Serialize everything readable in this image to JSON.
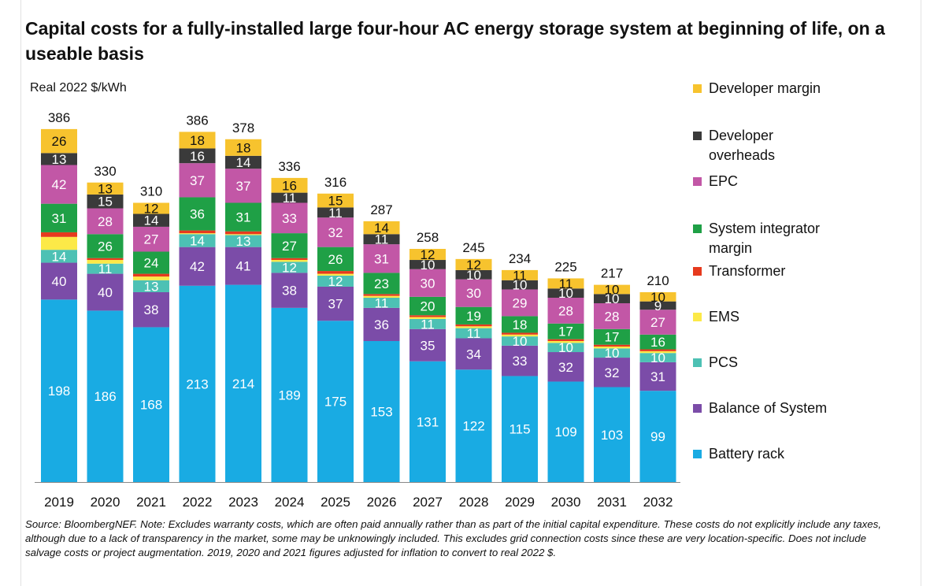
{
  "chart_data": {
    "type": "bar",
    "stacked": true,
    "title": "Capital costs for a fully-installed large four-hour AC energy storage system at beginning of life, on a useable basis",
    "ylabel": "Real 2022 $/kWh",
    "xlabel": "",
    "ylim": [
      0,
      410
    ],
    "grid": false,
    "legend_position": "right",
    "categories": [
      "2019",
      "2020",
      "2021",
      "2022",
      "2023",
      "2024",
      "2025",
      "2026",
      "2027",
      "2028",
      "2029",
      "2030",
      "2031",
      "2032"
    ],
    "totals": [
      386,
      330,
      310,
      386,
      378,
      336,
      316,
      287,
      258,
      245,
      234,
      225,
      217,
      210
    ],
    "series": [
      {
        "name": "Battery rack",
        "color": "#19ABE3",
        "values": [
          198,
          186,
          168,
          213,
          214,
          189,
          175,
          153,
          131,
          122,
          115,
          109,
          103,
          99
        ],
        "labels": [
          "198",
          "186",
          "168",
          "213",
          "214",
          "189",
          "175",
          "153",
          "131",
          "122",
          "115",
          "109",
          "103",
          "99"
        ]
      },
      {
        "name": "Balance of System",
        "color": "#7B4CA8",
        "values": [
          40,
          40,
          38,
          42,
          41,
          38,
          37,
          36,
          35,
          34,
          33,
          32,
          32,
          31
        ],
        "labels": [
          "40",
          "40",
          "38",
          "42",
          "41",
          "38",
          "37",
          "36",
          "35",
          "34",
          "33",
          "32",
          "32",
          "31"
        ]
      },
      {
        "name": "PCS",
        "color": "#4DC1B4",
        "values": [
          14,
          11,
          13,
          14,
          13,
          12,
          12,
          11,
          11,
          11,
          10,
          10,
          10,
          10
        ],
        "labels": [
          "14",
          "11",
          "13",
          "14",
          "13",
          "12",
          "12",
          "11",
          "11",
          "11",
          "10",
          "10",
          "10",
          "10"
        ]
      },
      {
        "name": "EMS",
        "color": "#FCE948",
        "values": [
          14,
          4,
          4,
          1,
          1,
          2,
          2,
          2,
          2,
          2,
          2,
          2,
          2,
          2
        ],
        "labels": [
          "",
          "",
          "",
          "",
          "",
          "",
          "",
          "",
          "",
          "",
          "",
          "",
          "",
          ""
        ]
      },
      {
        "name": "Transformer",
        "color": "#E63A1E",
        "values": [
          5,
          2,
          3,
          3,
          3,
          2,
          3,
          2,
          2,
          2,
          2,
          2,
          2,
          2
        ],
        "labels": [
          "",
          "",
          "",
          "",
          "",
          "",
          "",
          "",
          "",
          "",
          "",
          "",
          "",
          ""
        ]
      },
      {
        "name": "System integrator margin",
        "color": "#1FA046",
        "values": [
          31,
          26,
          24,
          36,
          31,
          27,
          26,
          23,
          20,
          19,
          18,
          17,
          17,
          16
        ],
        "labels": [
          "31",
          "26",
          "24",
          "36",
          "31",
          "27",
          "26",
          "23",
          "20",
          "19",
          "18",
          "17",
          "17",
          "16"
        ]
      },
      {
        "name": "EPC",
        "color": "#C257A6",
        "values": [
          42,
          28,
          27,
          37,
          37,
          33,
          32,
          31,
          30,
          30,
          29,
          28,
          28,
          27
        ],
        "labels": [
          "42",
          "28",
          "27",
          "37",
          "37",
          "33",
          "32",
          "31",
          "30",
          "30",
          "29",
          "28",
          "28",
          "27"
        ]
      },
      {
        "name": "Developer overheads",
        "color": "#3A3A3A",
        "values": [
          13,
          15,
          14,
          16,
          14,
          11,
          11,
          11,
          10,
          10,
          10,
          10,
          10,
          9
        ],
        "labels": [
          "13",
          "15",
          "14",
          "16",
          "14",
          "11",
          "11",
          "11",
          "10",
          "10",
          "10",
          "10",
          "10",
          "9"
        ]
      },
      {
        "name": "Developer margin",
        "color": "#F7C32E",
        "values": [
          26,
          13,
          12,
          18,
          18,
          16,
          15,
          14,
          12,
          12,
          11,
          11,
          10,
          10
        ],
        "labels": [
          "26",
          "13",
          "12",
          "18",
          "18",
          "16",
          "15",
          "14",
          "12",
          "12",
          "11",
          "11",
          "10",
          "10"
        ]
      }
    ],
    "legend": [
      {
        "label": "Developer margin",
        "color": "#F7C32E"
      },
      {
        "label": "Developer overheads",
        "color": "#3A3A3A"
      },
      {
        "label": "EPC",
        "color": "#C257A6"
      },
      {
        "label": "System integrator margin",
        "color": "#1FA046"
      },
      {
        "label": "Transformer",
        "color": "#E63A1E"
      },
      {
        "label": "EMS",
        "color": "#FCE948"
      },
      {
        "label": "PCS",
        "color": "#4DC1B4"
      },
      {
        "label": "Balance of System",
        "color": "#7B4CA8"
      },
      {
        "label": "Battery rack",
        "color": "#19ABE3"
      }
    ]
  },
  "source_note": "Source: BloombergNEF. Note: Excludes warranty costs, which are often paid annually rather than as part of the initial capital expenditure. These costs do not explicitly include any taxes, although due to a lack of transparency in the market, some may be unknowingly included. This excludes grid connection costs since these are very location-specific. Does not include salvage costs or project augmentation. 2019, 2020 and 2021 figures adjusted for inflation to convert to real 2022 $."
}
